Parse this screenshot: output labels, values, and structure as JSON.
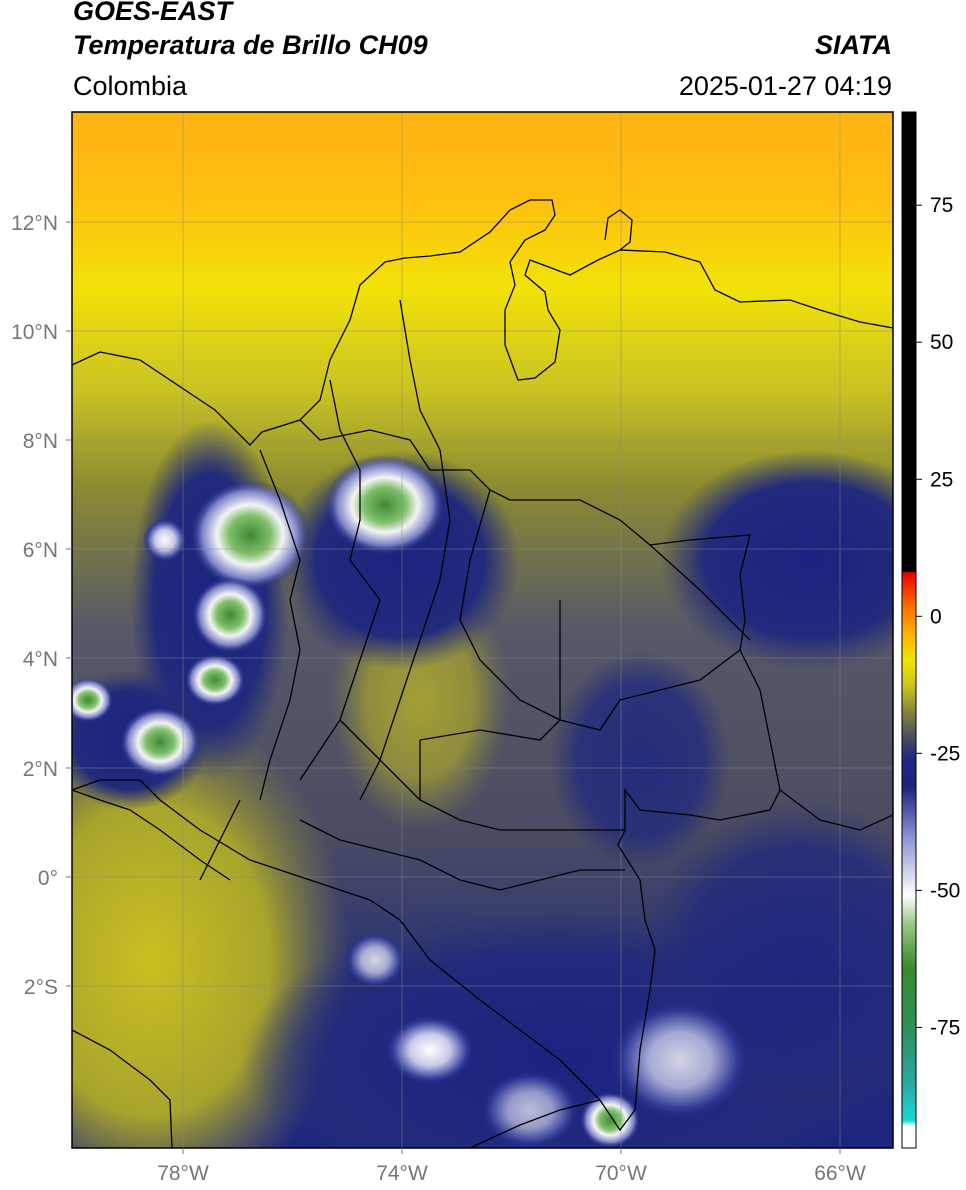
{
  "header": {
    "satellite": "GOES-EAST",
    "product": "Temperatura de Brillo CH09",
    "brand": "SIATA",
    "region": "Colombia",
    "timestamp": "2025-01-27 04:19"
  },
  "axes": {
    "lat_ticks": [
      "12°N",
      "10°N",
      "8°N",
      "6°N",
      "4°N",
      "2°N",
      "0°",
      "2°S"
    ],
    "lon_ticks": [
      "78°W",
      "74°W",
      "70°W",
      "66°W"
    ]
  },
  "colorbar": {
    "tick_labels": [
      "75",
      "50",
      "25",
      "0",
      "-25",
      "-50",
      "-75"
    ],
    "tick_values": [
      75,
      50,
      25,
      0,
      -25,
      -50,
      -75
    ],
    "range": [
      -97,
      92
    ],
    "stops": [
      {
        "value": -97,
        "color": "#ffffff"
      },
      {
        "value": -93,
        "color": "#ffffff"
      },
      {
        "value": -92,
        "color": "#19d6d6"
      },
      {
        "value": -85,
        "color": "#2aa8a0"
      },
      {
        "value": -75,
        "color": "#2f8f5c"
      },
      {
        "value": -64,
        "color": "#3a8a2a"
      },
      {
        "value": -56,
        "color": "#9cc98c"
      },
      {
        "value": -51,
        "color": "#ffffff"
      },
      {
        "value": -40,
        "color": "#8a8fcf"
      },
      {
        "value": -31,
        "color": "#1a237e"
      },
      {
        "value": -26,
        "color": "#1c2a80"
      },
      {
        "value": -22,
        "color": "#4c4d5e"
      },
      {
        "value": -17,
        "color": "#8a8a3a"
      },
      {
        "value": -13,
        "color": "#c8c020"
      },
      {
        "value": -8,
        "color": "#f0e600"
      },
      {
        "value": -3,
        "color": "#ffb000"
      },
      {
        "value": 2,
        "color": "#ff6a00"
      },
      {
        "value": 8,
        "color": "#e80000"
      },
      {
        "value": 8.1,
        "color": "#000000"
      },
      {
        "value": 92,
        "color": "#000000"
      }
    ]
  },
  "colors": {
    "warm_yellow": "#e8dc10",
    "orange": "#ffad10",
    "olive": "#8c8c30",
    "slate": "#4c4e5c",
    "navy": "#1c2680",
    "cloud_white": "#f0f0f0",
    "cloud_green": "#3f8a35"
  }
}
